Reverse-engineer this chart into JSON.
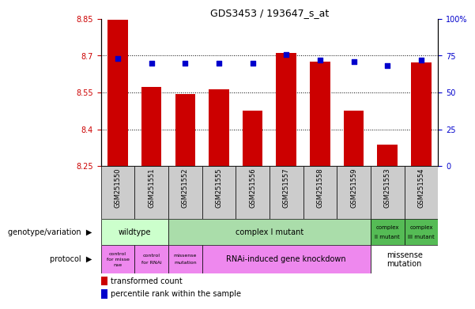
{
  "title": "GDS3453 / 193647_s_at",
  "samples": [
    "GSM251550",
    "GSM251551",
    "GSM251552",
    "GSM251555",
    "GSM251556",
    "GSM251557",
    "GSM251558",
    "GSM251559",
    "GSM251553",
    "GSM251554"
  ],
  "bar_values": [
    8.848,
    8.572,
    8.542,
    8.564,
    8.475,
    8.712,
    8.675,
    8.475,
    8.338,
    8.673
  ],
  "dot_values": [
    73,
    70,
    70,
    70,
    70,
    76,
    72,
    71,
    68,
    72
  ],
  "ylim_left": [
    8.25,
    8.85
  ],
  "ylim_right": [
    0,
    100
  ],
  "yticks_left": [
    8.25,
    8.4,
    8.55,
    8.7,
    8.85
  ],
  "yticks_right": [
    0,
    25,
    50,
    75,
    100
  ],
  "bar_color": "#cc0000",
  "dot_color": "#0000cc",
  "sample_bg_color": "#cccccc",
  "genotype_colors": {
    "wildtype": "#ccffcc",
    "complex_I": "#aaddaa",
    "complex_II": "#55bb55",
    "complex_III": "#55bb55"
  },
  "protocol_color_pink": "#ee88ee",
  "protocol_color_white": "#ffffff"
}
